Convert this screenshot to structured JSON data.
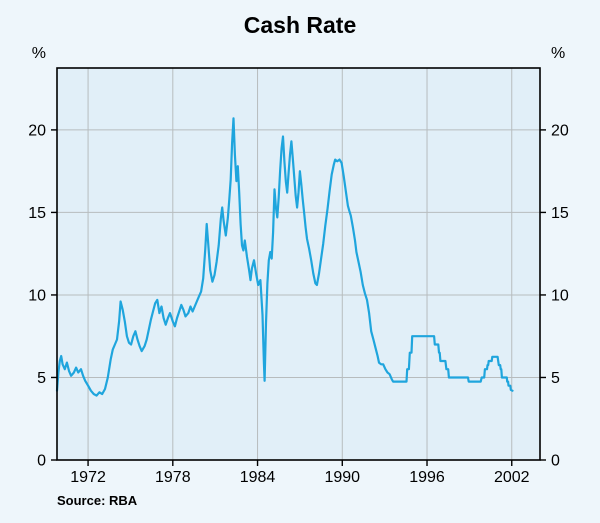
{
  "chart_data": {
    "type": "line",
    "title": "Cash Rate",
    "ylabel": "%",
    "source": "Source: RBA",
    "x_ticks": [
      1972,
      1978,
      1984,
      1990,
      1996,
      2002
    ],
    "y_ticks": [
      0,
      5,
      10,
      15,
      20
    ],
    "xlim": [
      1969.8,
      2004.0
    ],
    "ylim": [
      0,
      23.75
    ],
    "grid": true,
    "legend": "none",
    "colors": {
      "panel": "#e1eff8",
      "grid": "#b7bcbe",
      "frame": "#000000",
      "line": "#1fa5dd"
    },
    "series": [
      {
        "name": "Cash Rate",
        "color": "#1fa5dd",
        "units": "percent",
        "points": [
          [
            1969.8,
            4.2
          ],
          [
            1969.9,
            5.3
          ],
          [
            1970.0,
            6.0
          ],
          [
            1970.1,
            6.3
          ],
          [
            1970.2,
            5.8
          ],
          [
            1970.35,
            5.5
          ],
          [
            1970.5,
            5.9
          ],
          [
            1970.65,
            5.4
          ],
          [
            1970.8,
            5.1
          ],
          [
            1971.0,
            5.3
          ],
          [
            1971.15,
            5.6
          ],
          [
            1971.3,
            5.3
          ],
          [
            1971.5,
            5.5
          ],
          [
            1971.65,
            5.1
          ],
          [
            1971.8,
            4.8
          ],
          [
            1972.0,
            4.5
          ],
          [
            1972.2,
            4.2
          ],
          [
            1972.4,
            4.0
          ],
          [
            1972.6,
            3.9
          ],
          [
            1972.8,
            4.1
          ],
          [
            1973.0,
            4.0
          ],
          [
            1973.2,
            4.3
          ],
          [
            1973.4,
            5.0
          ],
          [
            1973.6,
            6.1
          ],
          [
            1973.75,
            6.7
          ],
          [
            1973.9,
            7.0
          ],
          [
            1974.05,
            7.3
          ],
          [
            1974.2,
            8.4
          ],
          [
            1974.3,
            9.6
          ],
          [
            1974.45,
            9.1
          ],
          [
            1974.6,
            8.4
          ],
          [
            1974.75,
            7.5
          ],
          [
            1974.9,
            7.1
          ],
          [
            1975.05,
            7.0
          ],
          [
            1975.2,
            7.5
          ],
          [
            1975.35,
            7.8
          ],
          [
            1975.5,
            7.3
          ],
          [
            1975.65,
            6.9
          ],
          [
            1975.8,
            6.6
          ],
          [
            1976.0,
            6.9
          ],
          [
            1976.15,
            7.3
          ],
          [
            1976.3,
            7.9
          ],
          [
            1976.45,
            8.5
          ],
          [
            1976.6,
            9.0
          ],
          [
            1976.75,
            9.5
          ],
          [
            1976.9,
            9.7
          ],
          [
            1977.05,
            8.9
          ],
          [
            1977.2,
            9.3
          ],
          [
            1977.35,
            8.6
          ],
          [
            1977.5,
            8.2
          ],
          [
            1977.65,
            8.6
          ],
          [
            1977.8,
            8.9
          ],
          [
            1978.0,
            8.4
          ],
          [
            1978.15,
            8.1
          ],
          [
            1978.3,
            8.6
          ],
          [
            1978.45,
            9.0
          ],
          [
            1978.6,
            9.4
          ],
          [
            1978.75,
            9.1
          ],
          [
            1978.9,
            8.7
          ],
          [
            1979.1,
            8.9
          ],
          [
            1979.25,
            9.3
          ],
          [
            1979.4,
            9.0
          ],
          [
            1979.55,
            9.3
          ],
          [
            1979.7,
            9.6
          ],
          [
            1979.85,
            9.9
          ],
          [
            1980.0,
            10.2
          ],
          [
            1980.15,
            11.0
          ],
          [
            1980.3,
            12.8
          ],
          [
            1980.4,
            14.3
          ],
          [
            1980.5,
            13.2
          ],
          [
            1980.65,
            11.5
          ],
          [
            1980.8,
            10.8
          ],
          [
            1980.95,
            11.2
          ],
          [
            1981.1,
            12.0
          ],
          [
            1981.25,
            13.0
          ],
          [
            1981.4,
            14.6
          ],
          [
            1981.5,
            15.3
          ],
          [
            1981.6,
            14.5
          ],
          [
            1981.75,
            13.6
          ],
          [
            1981.9,
            14.7
          ],
          [
            1982.0,
            15.8
          ],
          [
            1982.1,
            17.0
          ],
          [
            1982.2,
            19.2
          ],
          [
            1982.3,
            20.7
          ],
          [
            1982.4,
            18.5
          ],
          [
            1982.5,
            16.9
          ],
          [
            1982.6,
            17.8
          ],
          [
            1982.7,
            16.2
          ],
          [
            1982.8,
            14.3
          ],
          [
            1982.9,
            13.0
          ],
          [
            1983.0,
            12.7
          ],
          [
            1983.1,
            13.3
          ],
          [
            1983.25,
            12.3
          ],
          [
            1983.4,
            11.5
          ],
          [
            1983.5,
            10.9
          ],
          [
            1983.6,
            11.6
          ],
          [
            1983.75,
            12.1
          ],
          [
            1983.9,
            11.3
          ],
          [
            1984.05,
            10.6
          ],
          [
            1984.2,
            10.9
          ],
          [
            1984.35,
            8.8
          ],
          [
            1984.45,
            5.9
          ],
          [
            1984.5,
            4.8
          ],
          [
            1984.6,
            8.3
          ],
          [
            1984.7,
            10.7
          ],
          [
            1984.8,
            12.1
          ],
          [
            1984.9,
            12.6
          ],
          [
            1985.0,
            12.2
          ],
          [
            1985.1,
            13.8
          ],
          [
            1985.2,
            16.4
          ],
          [
            1985.3,
            15.3
          ],
          [
            1985.4,
            14.7
          ],
          [
            1985.5,
            15.9
          ],
          [
            1985.6,
            17.5
          ],
          [
            1985.7,
            18.9
          ],
          [
            1985.8,
            19.6
          ],
          [
            1985.9,
            18.1
          ],
          [
            1986.0,
            16.9
          ],
          [
            1986.1,
            16.2
          ],
          [
            1986.2,
            17.4
          ],
          [
            1986.3,
            18.5
          ],
          [
            1986.4,
            19.3
          ],
          [
            1986.5,
            18.2
          ],
          [
            1986.6,
            17.1
          ],
          [
            1986.7,
            16.0
          ],
          [
            1986.8,
            15.3
          ],
          [
            1986.9,
            16.2
          ],
          [
            1987.0,
            17.5
          ],
          [
            1987.1,
            16.7
          ],
          [
            1987.2,
            15.8
          ],
          [
            1987.3,
            15.0
          ],
          [
            1987.4,
            14.1
          ],
          [
            1987.5,
            13.4
          ],
          [
            1987.65,
            12.8
          ],
          [
            1987.8,
            12.1
          ],
          [
            1987.95,
            11.3
          ],
          [
            1988.1,
            10.7
          ],
          [
            1988.2,
            10.6
          ],
          [
            1988.35,
            11.3
          ],
          [
            1988.5,
            12.2
          ],
          [
            1988.65,
            13.1
          ],
          [
            1988.8,
            14.2
          ],
          [
            1988.95,
            15.2
          ],
          [
            1989.1,
            16.3
          ],
          [
            1989.25,
            17.3
          ],
          [
            1989.4,
            17.9
          ],
          [
            1989.5,
            18.2
          ],
          [
            1989.65,
            18.1
          ],
          [
            1989.8,
            18.2
          ],
          [
            1989.95,
            18.0
          ],
          [
            1990.1,
            17.2
          ],
          [
            1990.25,
            16.3
          ],
          [
            1990.4,
            15.4
          ],
          [
            1990.5,
            15.1
          ],
          [
            1990.6,
            14.8
          ],
          [
            1990.75,
            14.1
          ],
          [
            1990.9,
            13.3
          ],
          [
            1991.0,
            12.6
          ],
          [
            1991.15,
            12.0
          ],
          [
            1991.3,
            11.4
          ],
          [
            1991.45,
            10.6
          ],
          [
            1991.6,
            10.1
          ],
          [
            1991.75,
            9.7
          ],
          [
            1991.9,
            8.9
          ],
          [
            1992.05,
            7.8
          ],
          [
            1992.2,
            7.3
          ],
          [
            1992.35,
            6.8
          ],
          [
            1992.5,
            6.3
          ],
          [
            1992.6,
            5.9
          ],
          [
            1992.75,
            5.8
          ],
          [
            1992.9,
            5.8
          ],
          [
            1993.05,
            5.5
          ],
          [
            1993.2,
            5.3
          ],
          [
            1993.35,
            5.2
          ],
          [
            1993.5,
            4.9
          ],
          [
            1993.6,
            4.75
          ],
          [
            1993.8,
            4.75
          ],
          [
            1994.0,
            4.75
          ],
          [
            1994.2,
            4.75
          ],
          [
            1994.4,
            4.75
          ],
          [
            1994.55,
            4.75
          ],
          [
            1994.6,
            5.5
          ],
          [
            1994.72,
            5.5
          ],
          [
            1994.78,
            6.5
          ],
          [
            1994.9,
            6.5
          ],
          [
            1994.95,
            7.5
          ],
          [
            1995.2,
            7.5
          ],
          [
            1995.5,
            7.5
          ],
          [
            1995.8,
            7.5
          ],
          [
            1996.1,
            7.5
          ],
          [
            1996.4,
            7.5
          ],
          [
            1996.5,
            7.5
          ],
          [
            1996.55,
            7.0
          ],
          [
            1996.8,
            7.0
          ],
          [
            1996.85,
            6.5
          ],
          [
            1996.9,
            6.5
          ],
          [
            1996.95,
            6.0
          ],
          [
            1997.3,
            6.0
          ],
          [
            1997.37,
            5.5
          ],
          [
            1997.5,
            5.5
          ],
          [
            1997.55,
            5.0
          ],
          [
            1997.8,
            5.0
          ],
          [
            1998.1,
            5.0
          ],
          [
            1998.4,
            5.0
          ],
          [
            1998.7,
            5.0
          ],
          [
            1998.9,
            5.0
          ],
          [
            1998.95,
            4.75
          ],
          [
            1999.2,
            4.75
          ],
          [
            1999.5,
            4.75
          ],
          [
            1999.8,
            4.75
          ],
          [
            1999.87,
            5.0
          ],
          [
            2000.05,
            5.0
          ],
          [
            2000.1,
            5.5
          ],
          [
            2000.25,
            5.5
          ],
          [
            2000.28,
            5.75
          ],
          [
            2000.33,
            5.75
          ],
          [
            2000.37,
            6.0
          ],
          [
            2000.58,
            6.0
          ],
          [
            2000.62,
            6.25
          ],
          [
            2000.8,
            6.25
          ],
          [
            2001.0,
            6.25
          ],
          [
            2001.08,
            5.75
          ],
          [
            2001.18,
            5.75
          ],
          [
            2001.22,
            5.5
          ],
          [
            2001.26,
            5.5
          ],
          [
            2001.3,
            5.0
          ],
          [
            2001.5,
            5.0
          ],
          [
            2001.65,
            5.0
          ],
          [
            2001.68,
            4.75
          ],
          [
            2001.74,
            4.75
          ],
          [
            2001.77,
            4.5
          ],
          [
            2001.9,
            4.5
          ],
          [
            2001.93,
            4.25
          ],
          [
            2002.05,
            4.2
          ]
        ]
      }
    ]
  }
}
